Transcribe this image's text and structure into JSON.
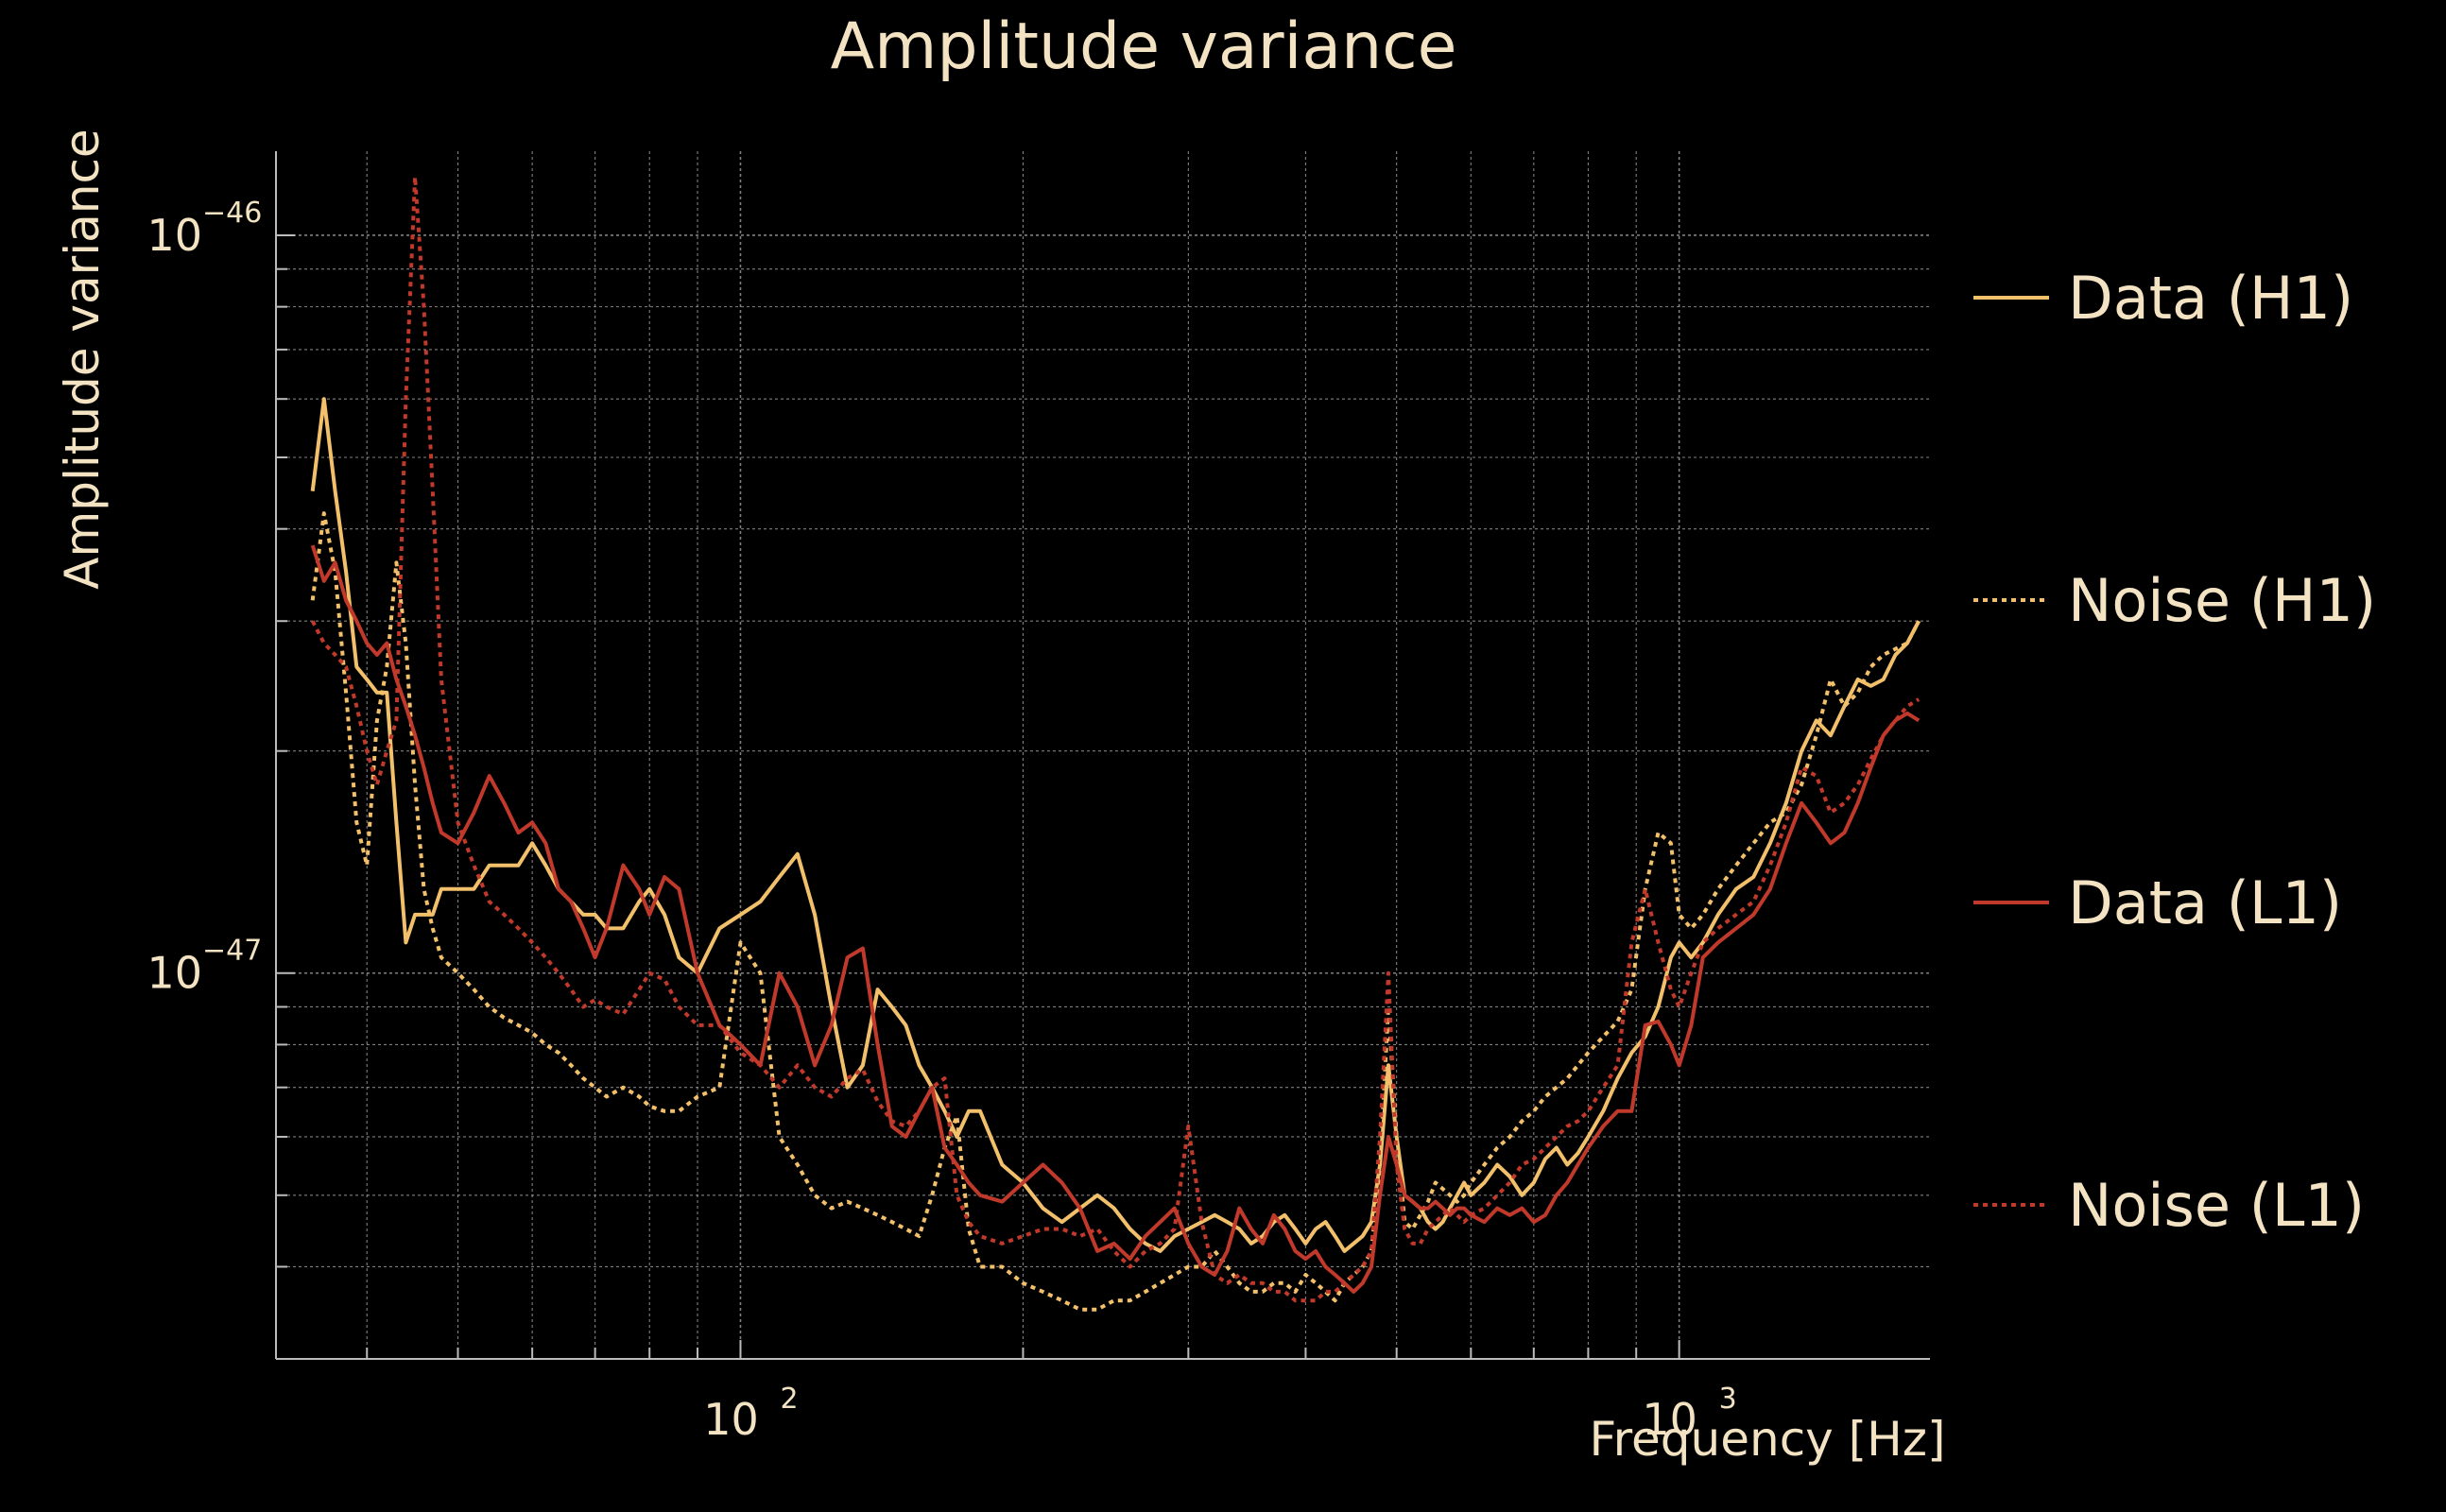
{
  "chart_data": {
    "type": "line",
    "title": "Amplitude variance",
    "xlabel": "Frequency [Hz]",
    "ylabel": "Amplitude variance",
    "xscale": "log",
    "yscale": "log",
    "xlim": [
      32,
      1850
    ],
    "ylim": [
      3e-48,
      1.3e-46
    ],
    "xticks": [
      {
        "value": 100,
        "base": "10",
        "exp": "2"
      },
      {
        "value": 1000,
        "base": "10",
        "exp": "3"
      }
    ],
    "yticks": [
      {
        "value": 1e-47,
        "base": "10",
        "exp": "−47"
      },
      {
        "value": 1e-46,
        "base": "10",
        "exp": "−46"
      }
    ],
    "grid": true,
    "legend_position": "right",
    "colors": {
      "background": "#000000",
      "text": "#f3e3c3",
      "axis": "#bbbbbb",
      "grid": "#a0a0a0"
    },
    "series": [
      {
        "name": "Data (H1)",
        "color": "#f2c06a",
        "dash": "solid",
        "x": [
          35,
          36,
          37,
          38,
          39,
          40,
          41,
          42,
          43,
          44,
          45,
          46,
          47,
          48,
          50,
          52,
          54,
          56,
          58,
          60,
          62,
          64,
          66,
          68,
          70,
          72,
          75,
          78,
          80,
          83,
          86,
          90,
          95,
          100,
          105,
          110,
          115,
          120,
          125,
          130,
          135,
          140,
          145,
          150,
          155,
          160,
          165,
          170,
          175,
          180,
          190,
          200,
          210,
          220,
          230,
          240,
          250,
          260,
          270,
          280,
          290,
          300,
          310,
          320,
          330,
          340,
          350,
          360,
          370,
          380,
          390,
          400,
          410,
          420,
          430,
          440,
          450,
          460,
          470,
          480,
          490,
          500,
          510,
          520,
          530,
          540,
          550,
          560,
          570,
          580,
          590,
          600,
          620,
          640,
          660,
          680,
          700,
          720,
          740,
          760,
          780,
          800,
          830,
          860,
          890,
          920,
          950,
          980,
          1000,
          1030,
          1060,
          1100,
          1150,
          1200,
          1250,
          1300,
          1350,
          1400,
          1450,
          1500,
          1550,
          1600,
          1650,
          1700,
          1750,
          1800
        ],
        "y": [
          4.5e-47,
          6e-47,
          4.5e-47,
          3.5e-47,
          2.6e-47,
          2.5e-47,
          2.4e-47,
          2.4e-47,
          1.6e-47,
          1.1e-47,
          1.2e-47,
          1.2e-47,
          1.2e-47,
          1.3e-47,
          1.3e-47,
          1.3e-47,
          1.4e-47,
          1.4e-47,
          1.4e-47,
          1.5e-47,
          1.4e-47,
          1.3e-47,
          1.25e-47,
          1.2e-47,
          1.2e-47,
          1.15e-47,
          1.15e-47,
          1.25e-47,
          1.3e-47,
          1.2e-47,
          1.05e-47,
          1e-47,
          1.15e-47,
          1.2e-47,
          1.25e-47,
          1.35e-47,
          1.45e-47,
          1.2e-47,
          9e-48,
          7e-48,
          7.5e-48,
          9.5e-48,
          9e-48,
          8.5e-48,
          7.5e-48,
          7e-48,
          6.5e-48,
          6e-48,
          6.5e-48,
          6.5e-48,
          5.5e-48,
          5.2e-48,
          4.8e-48,
          4.6e-48,
          4.8e-48,
          5e-48,
          4.8e-48,
          4.5e-48,
          4.3e-48,
          4.2e-48,
          4.4e-48,
          4.5e-48,
          4.6e-48,
          4.7e-48,
          4.6e-48,
          4.5e-48,
          4.3e-48,
          4.4e-48,
          4.6e-48,
          4.7e-48,
          4.5e-48,
          4.3e-48,
          4.5e-48,
          4.6e-48,
          4.4e-48,
          4.2e-48,
          4.3e-48,
          4.4e-48,
          4.6e-48,
          5.5e-48,
          7.5e-48,
          6e-48,
          5e-48,
          4.9e-48,
          4.8e-48,
          4.6e-48,
          4.5e-48,
          4.6e-48,
          4.8e-48,
          5e-48,
          5.2e-48,
          5e-48,
          5.2e-48,
          5.5e-48,
          5.3e-48,
          5e-48,
          5.2e-48,
          5.6e-48,
          5.8e-48,
          5.5e-48,
          5.7e-48,
          6e-48,
          6.5e-48,
          7.2e-48,
          7.8e-48,
          8.2e-48,
          9e-48,
          1.05e-47,
          1.1e-47,
          1.05e-47,
          1.1e-47,
          1.2e-47,
          1.3e-47,
          1.35e-47,
          1.5e-47,
          1.7e-47,
          2e-47,
          2.2e-47,
          2.1e-47,
          2.3e-47,
          2.5e-47,
          2.45e-47,
          2.5e-47,
          2.7e-47,
          2.8e-47,
          3e-47
        ]
      },
      {
        "name": "Noise (H1)",
        "color": "#f2c06a",
        "dash": "dotted",
        "x": [
          35,
          36,
          37,
          38,
          39,
          40,
          41,
          42,
          43,
          44,
          45,
          46,
          47,
          48,
          50,
          52,
          54,
          56,
          58,
          60,
          62,
          64,
          66,
          68,
          70,
          72,
          75,
          78,
          80,
          83,
          86,
          90,
          95,
          100,
          105,
          110,
          115,
          120,
          125,
          130,
          135,
          140,
          145,
          150,
          155,
          160,
          165,
          170,
          175,
          180,
          190,
          200,
          210,
          220,
          230,
          240,
          250,
          260,
          270,
          280,
          290,
          300,
          310,
          320,
          330,
          340,
          350,
          360,
          370,
          380,
          390,
          400,
          410,
          420,
          430,
          440,
          450,
          460,
          470,
          480,
          490,
          500,
          510,
          520,
          530,
          540,
          550,
          560,
          570,
          580,
          590,
          600,
          620,
          640,
          660,
          680,
          700,
          720,
          740,
          760,
          780,
          800,
          830,
          860,
          890,
          920,
          950,
          980,
          1000,
          1030,
          1060,
          1100,
          1150,
          1200,
          1250,
          1300,
          1350,
          1400,
          1450,
          1500,
          1550,
          1600,
          1650,
          1700,
          1750,
          1800
        ],
        "y": [
          3.2e-47,
          4.2e-47,
          3.5e-47,
          2.4e-47,
          1.6e-47,
          1.4e-47,
          2.2e-47,
          2.6e-47,
          3.6e-47,
          2.8e-47,
          1.8e-47,
          1.3e-47,
          1.15e-47,
          1.05e-47,
          1e-47,
          9.5e-48,
          9e-48,
          8.7e-48,
          8.5e-48,
          8.3e-48,
          8e-48,
          7.8e-48,
          7.5e-48,
          7.2e-48,
          7e-48,
          6.8e-48,
          7e-48,
          6.8e-48,
          6.6e-48,
          6.5e-48,
          6.5e-48,
          6.8e-48,
          7e-48,
          1.1e-47,
          1e-47,
          6e-48,
          5.5e-48,
          5e-48,
          4.8e-48,
          4.9e-48,
          4.8e-48,
          4.7e-48,
          4.6e-48,
          4.5e-48,
          4.4e-48,
          5e-48,
          5.8e-48,
          6.4e-48,
          4.5e-48,
          4e-48,
          4e-48,
          3.8e-48,
          3.7e-48,
          3.6e-48,
          3.5e-48,
          3.5e-48,
          3.6e-48,
          3.6e-48,
          3.7e-48,
          3.8e-48,
          3.9e-48,
          4e-48,
          4e-48,
          4.2e-48,
          4e-48,
          3.8e-48,
          3.7e-48,
          3.7e-48,
          3.8e-48,
          3.8e-48,
          3.7e-48,
          3.9e-48,
          3.8e-48,
          3.7e-48,
          3.6e-48,
          3.8e-48,
          3.9e-48,
          4e-48,
          4.2e-48,
          5.5e-48,
          9e-48,
          6e-48,
          4.6e-48,
          4.5e-48,
          4.7e-48,
          4.9e-48,
          5.2e-48,
          5.1e-48,
          5e-48,
          4.9e-48,
          5e-48,
          5.2e-48,
          5.5e-48,
          5.8e-48,
          6e-48,
          6.3e-48,
          6.5e-48,
          6.8e-48,
          7e-48,
          7.2e-48,
          7.5e-48,
          7.8e-48,
          8.2e-48,
          8.6e-48,
          9.5e-48,
          1.3e-47,
          1.55e-47,
          1.5e-47,
          1.2e-47,
          1.15e-47,
          1.2e-47,
          1.3e-47,
          1.4e-47,
          1.5e-47,
          1.6e-47,
          1.65e-47,
          1.8e-47,
          2.1e-47,
          2.5e-47,
          2.3e-47,
          2.4e-47,
          2.6e-47,
          2.7e-47,
          2.75e-47,
          2.8e-47,
          3e-47
        ]
      },
      {
        "name": "Data (L1)",
        "color": "#c0392b",
        "dash": "solid",
        "x": [
          35,
          36,
          37,
          38,
          39,
          40,
          41,
          42,
          43,
          44,
          45,
          46,
          47,
          48,
          50,
          52,
          54,
          56,
          58,
          60,
          62,
          64,
          66,
          68,
          70,
          72,
          75,
          78,
          80,
          83,
          86,
          90,
          95,
          100,
          105,
          110,
          115,
          120,
          125,
          130,
          135,
          140,
          145,
          150,
          155,
          160,
          165,
          170,
          175,
          180,
          190,
          200,
          210,
          220,
          230,
          240,
          250,
          260,
          270,
          280,
          290,
          300,
          310,
          320,
          330,
          340,
          350,
          360,
          370,
          380,
          390,
          400,
          410,
          420,
          430,
          440,
          450,
          460,
          470,
          480,
          490,
          500,
          510,
          520,
          530,
          540,
          550,
          560,
          570,
          580,
          590,
          600,
          620,
          640,
          660,
          680,
          700,
          720,
          740,
          760,
          780,
          800,
          830,
          860,
          890,
          920,
          950,
          980,
          1000,
          1030,
          1060,
          1100,
          1150,
          1200,
          1250,
          1300,
          1350,
          1400,
          1450,
          1500,
          1550,
          1600,
          1650,
          1700,
          1750,
          1800
        ],
        "y": [
          3.8e-47,
          3.4e-47,
          3.6e-47,
          3.2e-47,
          3e-47,
          2.8e-47,
          2.7e-47,
          2.8e-47,
          2.5e-47,
          2.3e-47,
          2.1e-47,
          1.9e-47,
          1.7e-47,
          1.55e-47,
          1.5e-47,
          1.65e-47,
          1.85e-47,
          1.7e-47,
          1.55e-47,
          1.6e-47,
          1.5e-47,
          1.3e-47,
          1.25e-47,
          1.15e-47,
          1.05e-47,
          1.15e-47,
          1.4e-47,
          1.3e-47,
          1.2e-47,
          1.35e-47,
          1.3e-47,
          1e-47,
          8.5e-48,
          8e-48,
          7.5e-48,
          1e-47,
          9e-48,
          7.5e-48,
          8.5e-48,
          1.05e-47,
          1.08e-47,
          8e-48,
          6.2e-48,
          6e-48,
          6.5e-48,
          7e-48,
          5.8e-48,
          5.5e-48,
          5.2e-48,
          5e-48,
          4.9e-48,
          5.2e-48,
          5.5e-48,
          5.2e-48,
          4.8e-48,
          4.2e-48,
          4.3e-48,
          4.1e-48,
          4.4e-48,
          4.6e-48,
          4.8e-48,
          4.3e-48,
          4e-48,
          3.9e-48,
          4.2e-48,
          4.8e-48,
          4.5e-48,
          4.3e-48,
          4.7e-48,
          4.5e-48,
          4.2e-48,
          4.1e-48,
          4.2e-48,
          4e-48,
          3.9e-48,
          3.8e-48,
          3.7e-48,
          3.8e-48,
          4e-48,
          5e-48,
          6e-48,
          5.5e-48,
          5e-48,
          4.9e-48,
          4.8e-48,
          4.8e-48,
          4.9e-48,
          4.8e-48,
          4.7e-48,
          4.8e-48,
          4.8e-48,
          4.7e-48,
          4.6e-48,
          4.8e-48,
          4.7e-48,
          4.8e-48,
          4.6e-48,
          4.7e-48,
          5e-48,
          5.2e-48,
          5.5e-48,
          5.8e-48,
          6.2e-48,
          6.5e-48,
          6.5e-48,
          8.5e-48,
          8.6e-48,
          8e-48,
          7.5e-48,
          8.5e-48,
          1.05e-47,
          1.1e-47,
          1.15e-47,
          1.2e-47,
          1.3e-47,
          1.5e-47,
          1.7e-47,
          1.6e-47,
          1.5e-47,
          1.55e-47,
          1.7e-47,
          1.9e-47,
          2.1e-47,
          2.2e-47,
          2.25e-47,
          2.2e-47
        ]
      },
      {
        "name": "Noise (L1)",
        "color": "#c0392b",
        "dash": "dotted",
        "x": [
          35,
          36,
          37,
          38,
          39,
          40,
          41,
          42,
          43,
          44,
          45,
          46,
          47,
          48,
          50,
          52,
          54,
          56,
          58,
          60,
          62,
          64,
          66,
          68,
          70,
          72,
          75,
          78,
          80,
          83,
          86,
          90,
          95,
          100,
          105,
          110,
          115,
          120,
          125,
          130,
          135,
          140,
          145,
          150,
          155,
          160,
          165,
          170,
          175,
          180,
          190,
          200,
          210,
          220,
          230,
          240,
          250,
          260,
          270,
          280,
          290,
          300,
          310,
          320,
          330,
          340,
          350,
          360,
          370,
          380,
          390,
          400,
          410,
          420,
          430,
          440,
          450,
          460,
          470,
          480,
          490,
          500,
          510,
          520,
          530,
          540,
          550,
          560,
          570,
          580,
          590,
          600,
          620,
          640,
          660,
          680,
          700,
          720,
          740,
          760,
          780,
          800,
          830,
          860,
          890,
          920,
          950,
          980,
          1000,
          1030,
          1060,
          1100,
          1150,
          1200,
          1250,
          1300,
          1350,
          1400,
          1450,
          1500,
          1550,
          1600,
          1650,
          1700,
          1750,
          1800
        ],
        "y": [
          3e-47,
          2.8e-47,
          2.7e-47,
          2.6e-47,
          2.3e-47,
          2e-47,
          1.8e-47,
          2e-47,
          2.2e-47,
          6e-47,
          1.2e-46,
          8e-47,
          4.5e-47,
          2.5e-47,
          1.6e-47,
          1.4e-47,
          1.25e-47,
          1.2e-47,
          1.15e-47,
          1.1e-47,
          1.05e-47,
          1e-47,
          9.5e-48,
          9e-48,
          9.2e-48,
          9e-48,
          8.8e-48,
          9.5e-48,
          1e-47,
          9.8e-48,
          9e-48,
          8.5e-48,
          8.5e-48,
          7.8e-48,
          7.5e-48,
          7e-48,
          7.5e-48,
          7e-48,
          6.8e-48,
          7.2e-48,
          7.4e-48,
          6.7e-48,
          6.3e-48,
          6.2e-48,
          6.5e-48,
          7e-48,
          7.2e-48,
          5e-48,
          4.6e-48,
          4.4e-48,
          4.3e-48,
          4.4e-48,
          4.5e-48,
          4.5e-48,
          4.4e-48,
          4.5e-48,
          4.2e-48,
          4e-48,
          4.2e-48,
          4.3e-48,
          4.5e-48,
          6.2e-48,
          4.6e-48,
          3.9e-48,
          3.8e-48,
          3.9e-48,
          3.8e-48,
          3.8e-48,
          3.7e-48,
          3.7e-48,
          3.6e-48,
          3.6e-48,
          3.6e-48,
          3.7e-48,
          3.7e-48,
          3.8e-48,
          3.9e-48,
          4e-48,
          4.2e-48,
          6e-48,
          1e-47,
          5.5e-48,
          4.5e-48,
          4.3e-48,
          4.3e-48,
          4.5e-48,
          4.6e-48,
          4.7e-48,
          4.8e-48,
          4.7e-48,
          4.6e-48,
          4.7e-48,
          4.8e-48,
          5e-48,
          5.2e-48,
          5.5e-48,
          5.6e-48,
          5.8e-48,
          6e-48,
          6.2e-48,
          6.3e-48,
          6.5e-48,
          7e-48,
          7.5e-48,
          1.1e-47,
          1.3e-47,
          1.1e-47,
          9.5e-48,
          9e-48,
          1e-47,
          1.1e-47,
          1.15e-47,
          1.2e-47,
          1.25e-47,
          1.4e-47,
          1.6e-47,
          1.9e-47,
          1.85e-47,
          1.65e-47,
          1.7e-47,
          1.8e-47,
          1.95e-47,
          2.1e-47,
          2.2e-47,
          2.3e-47,
          2.35e-47
        ]
      }
    ]
  }
}
